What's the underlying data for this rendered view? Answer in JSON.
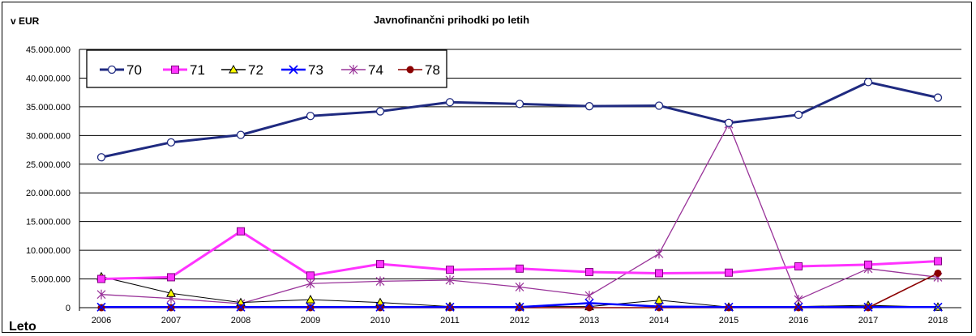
{
  "chart_data": {
    "type": "line",
    "title": "Javnofinančni prihodki po letih",
    "ylabel": "v EUR",
    "xlabel": "Leto",
    "ylim": [
      0,
      45000000
    ],
    "yticks": [
      0,
      5000000,
      10000000,
      15000000,
      20000000,
      25000000,
      30000000,
      35000000,
      40000000,
      45000000
    ],
    "ytick_labels": [
      "0",
      "5.000.000",
      "10.000.000",
      "15.000.000",
      "20.000.000",
      "25.000.000",
      "30.000.000",
      "35.000.000",
      "40.000.000",
      "45.000.000"
    ],
    "categories": [
      "2006",
      "2007",
      "2008",
      "2009",
      "2010",
      "2011",
      "2012",
      "2013",
      "2014",
      "2015",
      "2016",
      "2017",
      "2018"
    ],
    "grid": true,
    "legend_position": "top-left",
    "series": [
      {
        "name": "70",
        "color": "#1f2a80",
        "marker": "circle",
        "values": [
          26200000,
          28800000,
          30100000,
          33400000,
          34200000,
          35800000,
          35500000,
          35100000,
          35200000,
          32200000,
          33600000,
          39300000,
          36600000
        ]
      },
      {
        "name": "71",
        "color": "#ff33ff",
        "marker": "square",
        "values": [
          5000000,
          5300000,
          13300000,
          5600000,
          7600000,
          6600000,
          6800000,
          6200000,
          6000000,
          6100000,
          7200000,
          7500000,
          8100000
        ]
      },
      {
        "name": "72",
        "color": "#000000",
        "marker": "triangle",
        "values": [
          5400000,
          2500000,
          900000,
          1400000,
          900000,
          200000,
          200000,
          200000,
          1300000,
          100000,
          200000,
          400000,
          100000
        ]
      },
      {
        "name": "73",
        "color": "#0000ff",
        "marker": "x",
        "values": [
          100000,
          100000,
          100000,
          100000,
          100000,
          100000,
          100000,
          800000,
          200000,
          100000,
          100000,
          100000,
          100000
        ]
      },
      {
        "name": "74",
        "color": "#993399",
        "marker": "star",
        "values": [
          2300000,
          1600000,
          700000,
          4200000,
          4600000,
          4800000,
          3600000,
          2100000,
          9400000,
          32000000,
          1400000,
          6800000,
          5300000
        ]
      },
      {
        "name": "78",
        "color": "#8b0000",
        "marker": "dot",
        "values": [
          0,
          0,
          0,
          0,
          0,
          0,
          0,
          0,
          0,
          0,
          0,
          0,
          6000000
        ]
      }
    ]
  }
}
